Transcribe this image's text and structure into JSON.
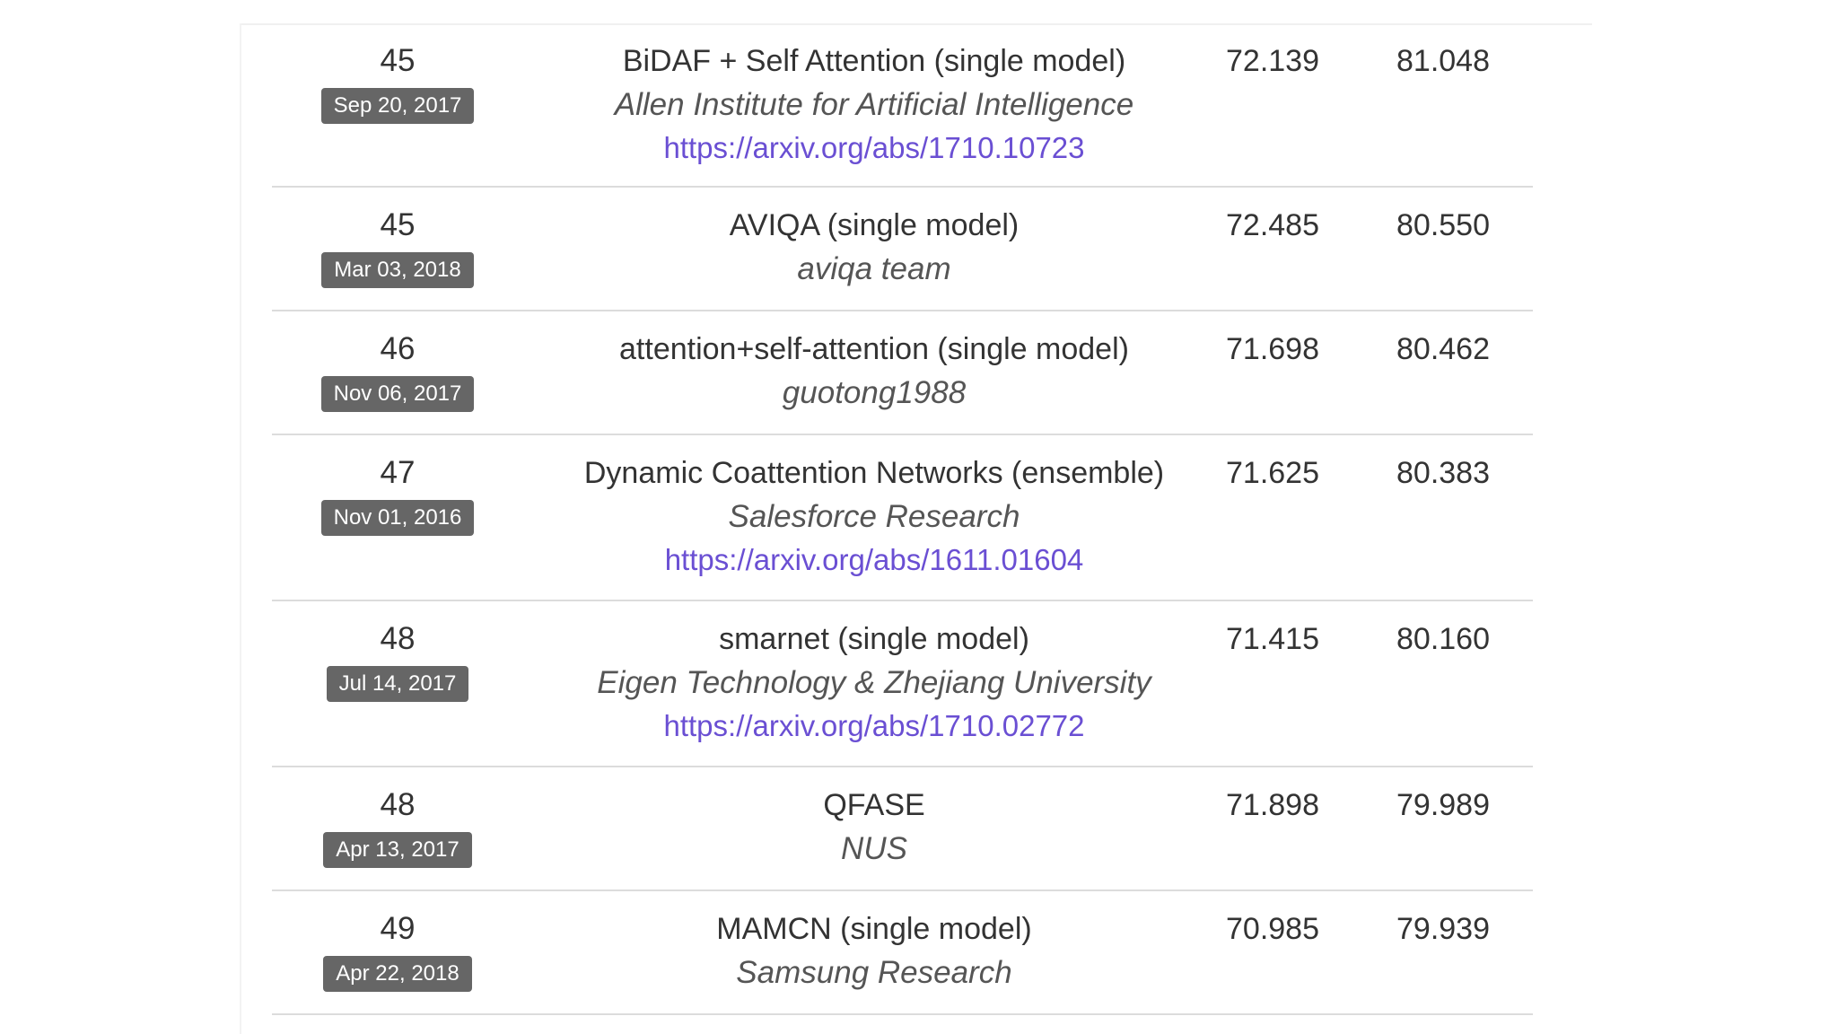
{
  "leaderboard": {
    "rows": [
      {
        "rank": "45",
        "date": "Sep 20, 2017",
        "model": "BiDAF + Self Attention (single model)",
        "org": "Allen Institute for Artificial Intelligence",
        "link": "https://arxiv.org/abs/1710.10723",
        "em": "72.139",
        "f1": "81.048"
      },
      {
        "rank": "45",
        "date": "Mar 03, 2018",
        "model": "AVIQA (single model)",
        "org": "aviqa team",
        "em": "72.485",
        "f1": "80.550"
      },
      {
        "rank": "46",
        "date": "Nov 06, 2017",
        "model": "attention+self-attention (single model)",
        "org": "guotong1988",
        "em": "71.698",
        "f1": "80.462"
      },
      {
        "rank": "47",
        "date": "Nov 01, 2016",
        "model": "Dynamic Coattention Networks (ensemble)",
        "org": "Salesforce Research",
        "link": "https://arxiv.org/abs/1611.01604",
        "em": "71.625",
        "f1": "80.383"
      },
      {
        "rank": "48",
        "date": "Jul 14, 2017",
        "model": "smarnet (single model)",
        "org": "Eigen Technology & Zhejiang University",
        "link": "https://arxiv.org/abs/1710.02772",
        "em": "71.415",
        "f1": "80.160"
      },
      {
        "rank": "48",
        "date": "Apr 13, 2017",
        "model": "QFASE",
        "org": "NUS",
        "em": "71.898",
        "f1": "79.989"
      },
      {
        "rank": "49",
        "date": "Apr 22, 2018",
        "model": "MAMCN (single model)",
        "org": "Samsung Research",
        "em": "70.985",
        "f1": "79.939"
      }
    ]
  }
}
